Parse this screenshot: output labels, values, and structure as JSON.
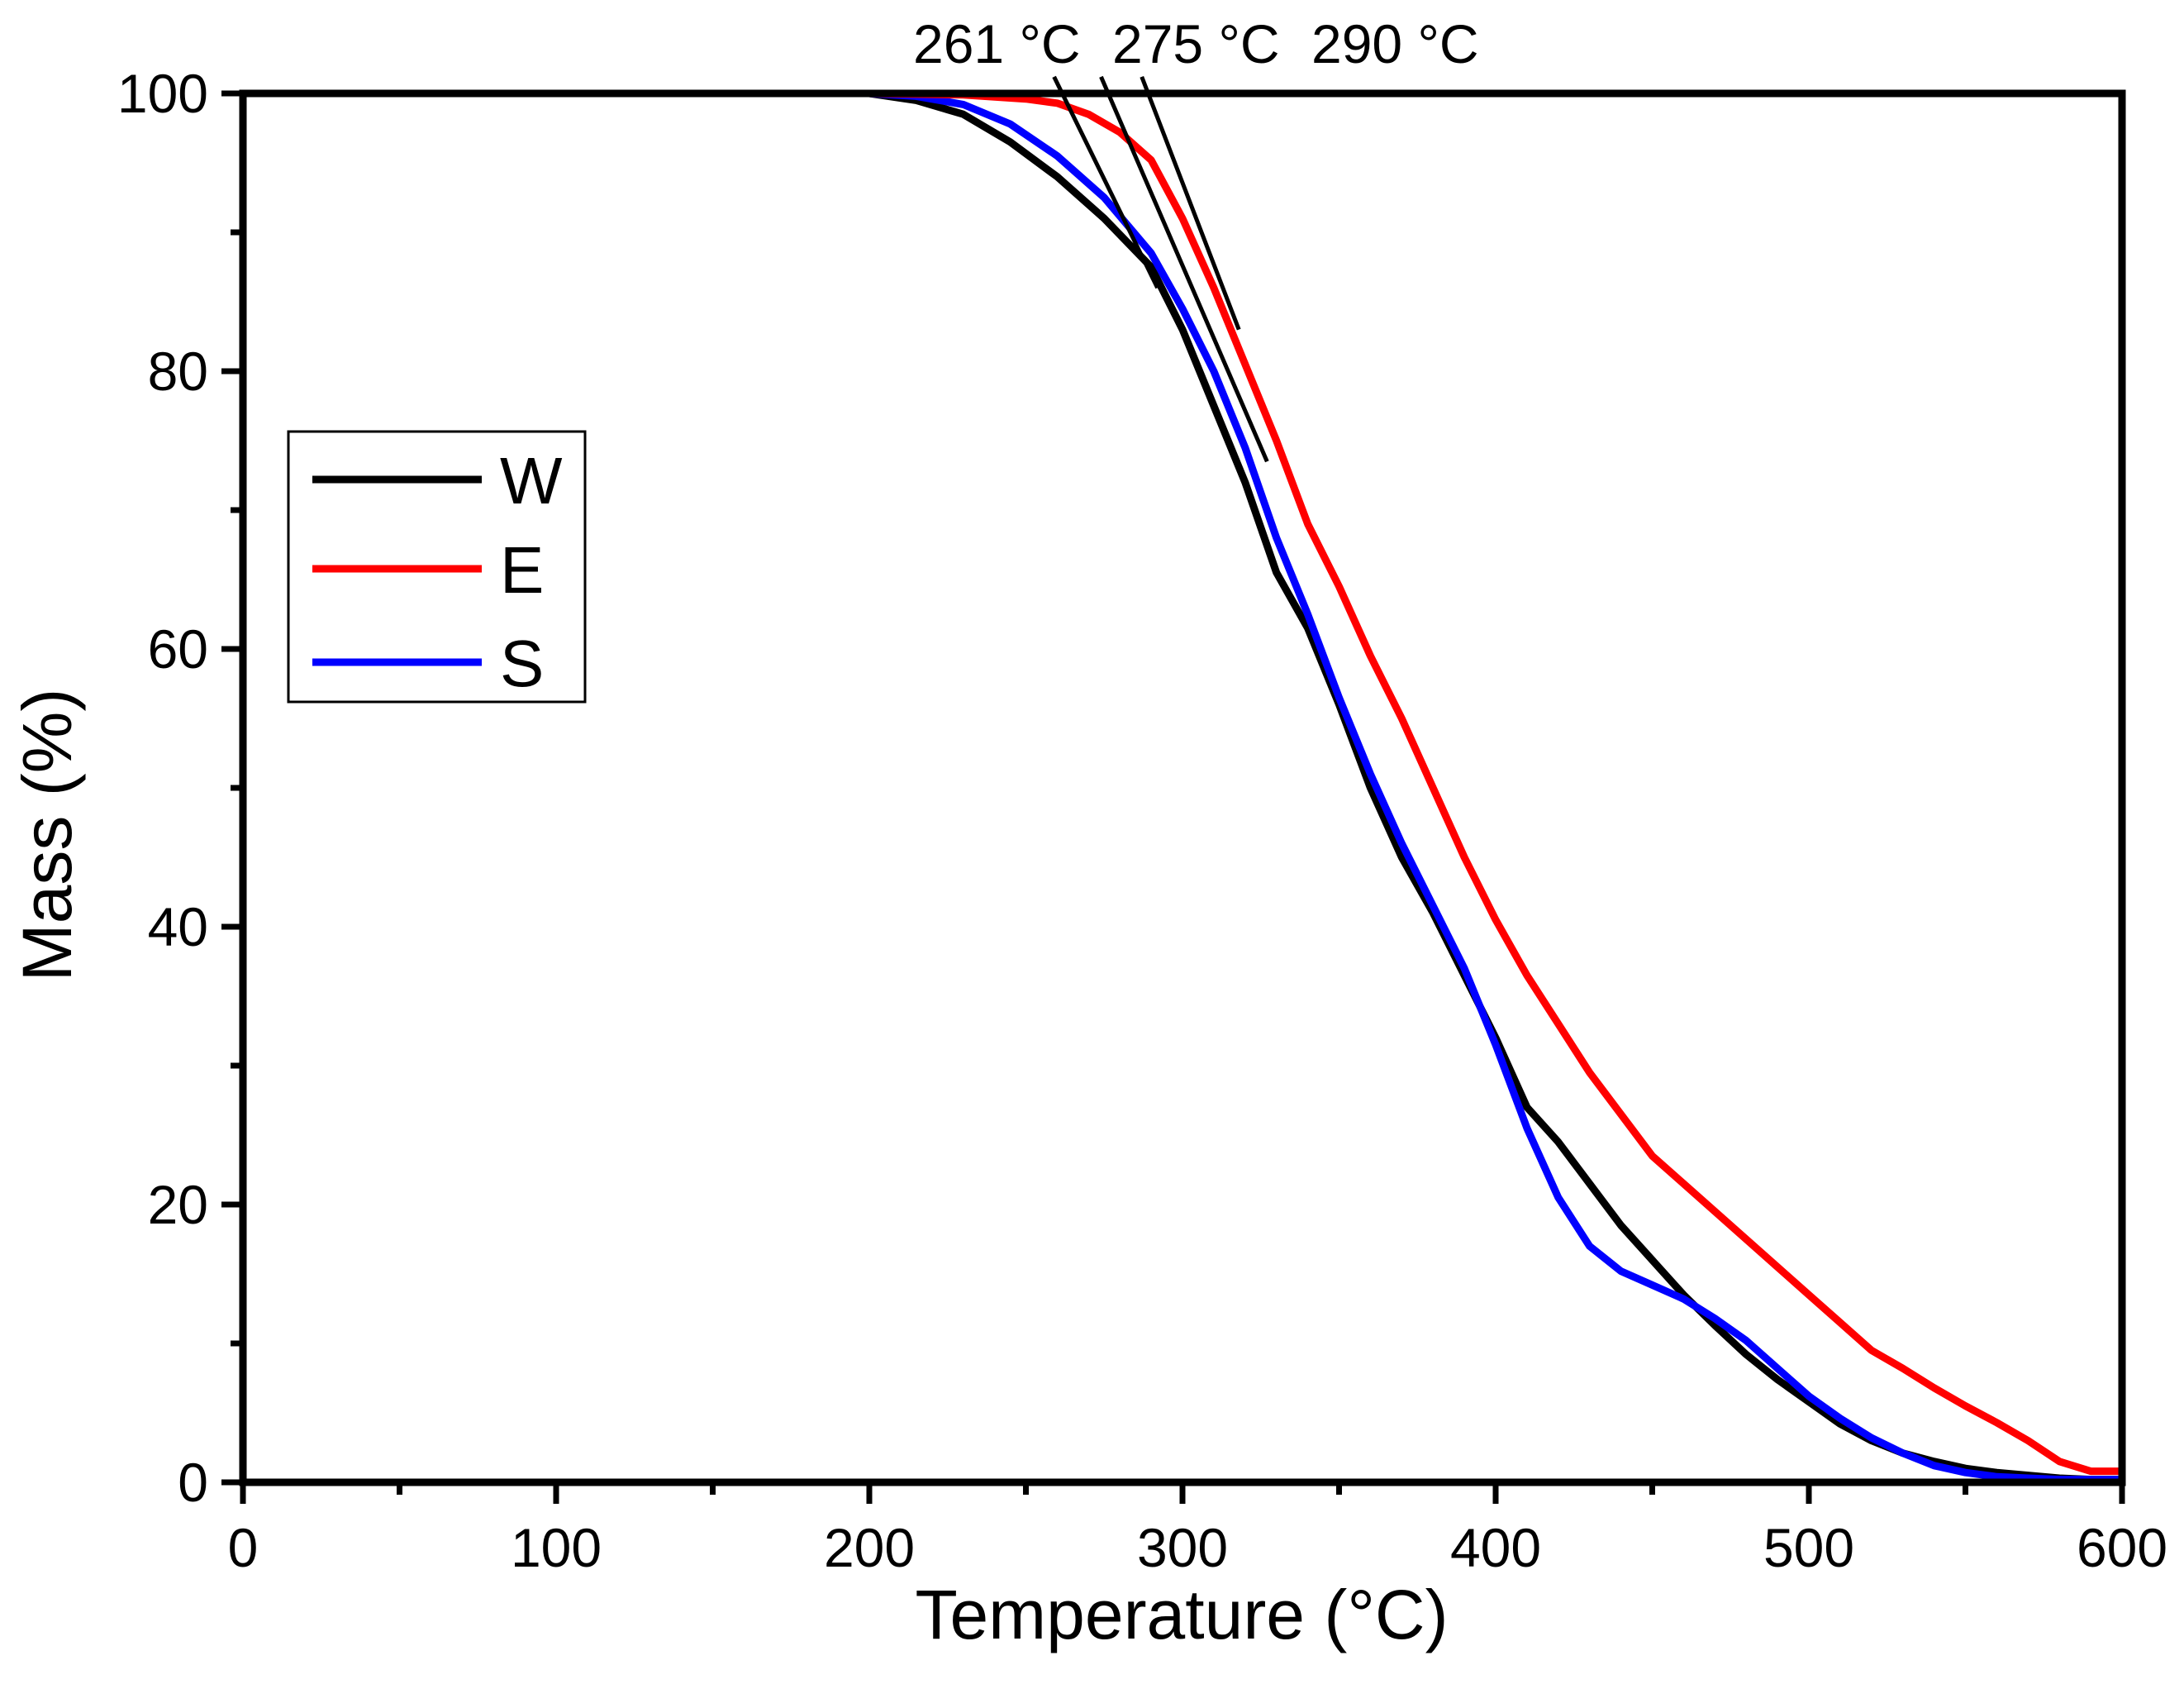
{
  "chart_data": {
    "type": "line",
    "title": "",
    "xlabel": "Temperature (°C)",
    "ylabel": "Mass (%)",
    "xlim": [
      0,
      600
    ],
    "ylim": [
      0,
      100
    ],
    "xticks": [
      0,
      100,
      200,
      300,
      400,
      500,
      600
    ],
    "yticks": [
      0,
      20,
      40,
      60,
      80,
      100
    ],
    "x_minor_step": 50,
    "y_minor_step": 10,
    "grid": false,
    "legend_position": "left-middle",
    "series": [
      {
        "name": "W",
        "color": "#000000",
        "x": [
          0,
          50,
          100,
          150,
          200,
          215,
          230,
          245,
          260,
          275,
          290,
          300,
          310,
          320,
          330,
          340,
          350,
          360,
          370,
          380,
          390,
          400,
          410,
          420,
          430,
          440,
          450,
          460,
          470,
          480,
          490,
          500,
          510,
          520,
          530,
          540,
          550,
          560,
          570,
          580,
          590,
          600
        ],
        "y": [
          100,
          100,
          100,
          100,
          100,
          99.5,
          98.5,
          96.5,
          94,
          91,
          87.5,
          83,
          77.5,
          72,
          65.5,
          61.5,
          56,
          50,
          45,
          41,
          36.5,
          32,
          27,
          24.5,
          21.5,
          18.5,
          16,
          13.5,
          11.3,
          9.2,
          7.4,
          5.8,
          4.2,
          3.0,
          2.1,
          1.5,
          1.0,
          0.7,
          0.5,
          0.3,
          0.2,
          0.2
        ]
      },
      {
        "name": "E",
        "color": "#ff0000",
        "x": [
          0,
          50,
          100,
          150,
          200,
          230,
          250,
          260,
          270,
          280,
          290,
          300,
          310,
          320,
          330,
          340,
          350,
          360,
          370,
          380,
          390,
          400,
          410,
          420,
          430,
          440,
          450,
          460,
          470,
          480,
          490,
          500,
          510,
          520,
          530,
          540,
          550,
          560,
          570,
          580,
          590,
          600
        ],
        "y": [
          100,
          100,
          100,
          100,
          100,
          99.9,
          99.6,
          99.3,
          98.5,
          97.2,
          95.2,
          91,
          86,
          80.5,
          75,
          69,
          64.5,
          59.5,
          55,
          50,
          45,
          40.5,
          36.5,
          33,
          29.5,
          26.5,
          23.5,
          21.5,
          19.5,
          17.5,
          15.5,
          13.5,
          11.5,
          9.5,
          8.2,
          6.8,
          5.5,
          4.3,
          3.0,
          1.5,
          0.8,
          0.8
        ]
      },
      {
        "name": "S",
        "color": "#0000ff",
        "x": [
          0,
          50,
          100,
          150,
          200,
          215,
          230,
          245,
          260,
          275,
          290,
          300,
          310,
          320,
          330,
          340,
          350,
          360,
          370,
          380,
          390,
          400,
          410,
          420,
          430,
          440,
          450,
          460,
          470,
          480,
          490,
          500,
          510,
          520,
          530,
          540,
          550,
          560,
          570,
          580,
          590,
          600
        ],
        "y": [
          100,
          100,
          100,
          100,
          100,
          99.8,
          99.2,
          97.8,
          95.5,
          92.5,
          88.5,
          84.5,
          80,
          74.5,
          68,
          62.5,
          56.5,
          51,
          46,
          41.5,
          37,
          31.5,
          25.5,
          20.5,
          17,
          15.2,
          14.2,
          13.2,
          11.8,
          10.2,
          8.2,
          6.2,
          4.6,
          3.2,
          2.1,
          1.2,
          0.7,
          0.4,
          0.3,
          0.2,
          0.2,
          0.2
        ]
      }
    ],
    "annotations": [
      {
        "label": "261 °C",
        "tangent_line": {
          "x": [
            259,
            292
          ],
          "y": [
            101.2,
            86.0
          ]
        }
      },
      {
        "label": "275 °C",
        "tangent_line": {
          "x": [
            274,
            327
          ],
          "y": [
            101.2,
            73.5
          ]
        }
      },
      {
        "label": "290 °C",
        "tangent_line": {
          "x": [
            287,
            318
          ],
          "y": [
            101.2,
            83.0
          ]
        }
      }
    ]
  }
}
